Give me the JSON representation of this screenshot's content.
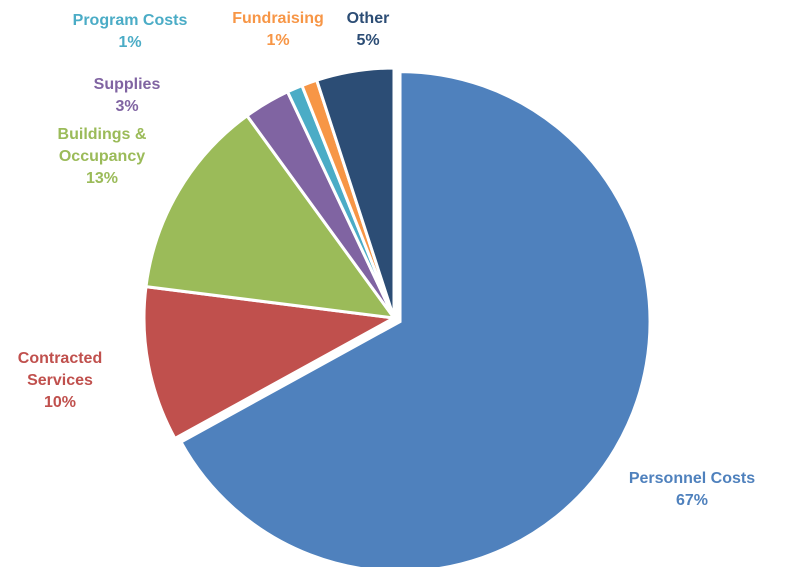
{
  "chart_data": {
    "type": "pie",
    "categories": [
      "Personnel Costs",
      "Contracted Services",
      "Buildings & Occupancy",
      "Supplies",
      "Program Costs",
      "Fundraising",
      "Other"
    ],
    "values": [
      67,
      10,
      13,
      3,
      1,
      1,
      5
    ],
    "value_labels": [
      "67%",
      "10%",
      "13%",
      "3%",
      "1%",
      "1%",
      "5%"
    ],
    "colors": [
      "#4f81bd",
      "#c0504d",
      "#9bbb59",
      "#8064a2",
      "#4bacc6",
      "#f79646",
      "#2c4d75"
    ]
  }
}
